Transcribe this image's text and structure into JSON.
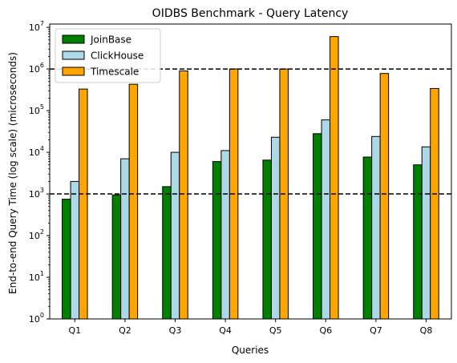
{
  "chart_data": {
    "type": "bar",
    "title": "OIDBS Benchmark - Query Latency",
    "xlabel": "Queries",
    "ylabel": "End-to-end Query Time (log scale) (microseconds)",
    "yscale": "log",
    "ylim": [
      1,
      12000000
    ],
    "yticks": [
      {
        "value": 1,
        "base": "10",
        "exp": "0"
      },
      {
        "value": 10,
        "base": "10",
        "exp": "1"
      },
      {
        "value": 100,
        "base": "10",
        "exp": "2"
      },
      {
        "value": 1000,
        "base": "10",
        "exp": "3"
      },
      {
        "value": 10000,
        "base": "10",
        "exp": "4"
      },
      {
        "value": 100000,
        "base": "10",
        "exp": "5"
      },
      {
        "value": 1000000,
        "base": "10",
        "exp": "6"
      },
      {
        "value": 10000000,
        "base": "10",
        "exp": "7"
      }
    ],
    "categories": [
      "Q1",
      "Q2",
      "Q3",
      "Q4",
      "Q5",
      "Q6",
      "Q7",
      "Q8"
    ],
    "series": [
      {
        "name": "JoinBase",
        "color": "#008000",
        "values": [
          750,
          950,
          1500,
          6000,
          6500,
          28000,
          7700,
          5000
        ]
      },
      {
        "name": "ClickHouse",
        "color": "#add8e6",
        "values": [
          2000,
          7000,
          10000,
          11000,
          23000,
          60000,
          24000,
          13500
        ]
      },
      {
        "name": "Timescale",
        "color": "#ffa500",
        "values": [
          330000,
          430000,
          900000,
          1000000,
          1000000,
          6000000,
          780000,
          340000
        ]
      }
    ],
    "reference_lines": [
      1000,
      1000000
    ],
    "grid": false,
    "legend_position": "top-left"
  }
}
